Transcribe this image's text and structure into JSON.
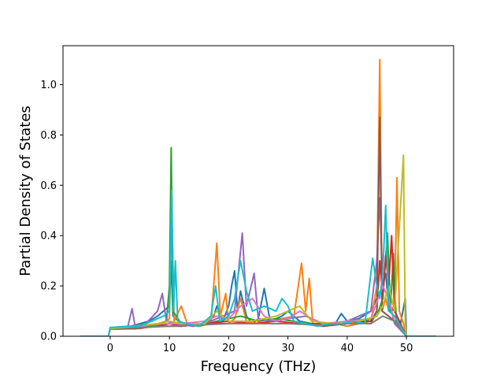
{
  "chart_data": {
    "type": "line",
    "title": "",
    "xlabel": "Frequency (THz)",
    "ylabel": "Partial Density of States",
    "xlim": [
      -7.96,
      57.96
    ],
    "ylim": [
      0.0,
      1.155
    ],
    "xticks": [
      0,
      10,
      20,
      30,
      40,
      50
    ],
    "yticks": [
      0.0,
      0.2,
      0.4,
      0.6,
      0.8,
      1.0
    ],
    "grid": false,
    "legend": "none",
    "series": [
      {
        "color": "#1f77b4",
        "points": [
          [
            -5,
            0
          ],
          [
            -0.3,
            0
          ],
          [
            0,
            0.03
          ],
          [
            2,
            0.032
          ],
          [
            3.5,
            0.04
          ],
          [
            5,
            0.05
          ],
          [
            6.5,
            0.06
          ],
          [
            8,
            0.08
          ],
          [
            9,
            0.1
          ],
          [
            10,
            0.12
          ],
          [
            10.3,
            0.3
          ],
          [
            10.6,
            0.08
          ],
          [
            12,
            0.05
          ],
          [
            14,
            0.04
          ],
          [
            16,
            0.05
          ],
          [
            17.5,
            0.08
          ],
          [
            18,
            0.12
          ],
          [
            19,
            0.06
          ],
          [
            20,
            0.12
          ],
          [
            20.5,
            0.2
          ],
          [
            21,
            0.26
          ],
          [
            21.5,
            0.1
          ],
          [
            22,
            0.18
          ],
          [
            23,
            0.08
          ],
          [
            24,
            0.05
          ],
          [
            25,
            0.07
          ],
          [
            26,
            0.19
          ],
          [
            27,
            0.06
          ],
          [
            29,
            0.08
          ],
          [
            30,
            0.1
          ],
          [
            32,
            0.06
          ],
          [
            34,
            0.05
          ],
          [
            36,
            0.04
          ],
          [
            38,
            0.05
          ],
          [
            39,
            0.09
          ],
          [
            40,
            0.06
          ],
          [
            42,
            0.07
          ],
          [
            44,
            0.1
          ],
          [
            45,
            0.15
          ],
          [
            46,
            0.2
          ],
          [
            46.5,
            0.25
          ],
          [
            47,
            0.12
          ],
          [
            48,
            0.1
          ],
          [
            49,
            0.05
          ],
          [
            49.8,
            0.15
          ],
          [
            50,
            0
          ],
          [
            55,
            0
          ]
        ]
      },
      {
        "color": "#ff7f0e",
        "points": [
          [
            -5,
            0
          ],
          [
            -0.3,
            0
          ],
          [
            0,
            0.028
          ],
          [
            3,
            0.03
          ],
          [
            5,
            0.03
          ],
          [
            7,
            0.04
          ],
          [
            9,
            0.05
          ],
          [
            10,
            0.07
          ],
          [
            10.4,
            0.5
          ],
          [
            10.8,
            0.06
          ],
          [
            12,
            0.12
          ],
          [
            13,
            0.05
          ],
          [
            15,
            0.04
          ],
          [
            17,
            0.05
          ],
          [
            18,
            0.37
          ],
          [
            18.6,
            0.08
          ],
          [
            19.5,
            0.17
          ],
          [
            20,
            0.05
          ],
          [
            21,
            0.07
          ],
          [
            22,
            0.15
          ],
          [
            23,
            0.06
          ],
          [
            25,
            0.05
          ],
          [
            27,
            0.06
          ],
          [
            29,
            0.07
          ],
          [
            31,
            0.08
          ],
          [
            32.3,
            0.29
          ],
          [
            33,
            0.1
          ],
          [
            33.6,
            0.23
          ],
          [
            34.2,
            0.05
          ],
          [
            36,
            0.04
          ],
          [
            38,
            0.05
          ],
          [
            40,
            0.04
          ],
          [
            42,
            0.05
          ],
          [
            44,
            0.06
          ],
          [
            45,
            0.2
          ],
          [
            45.5,
            1.1
          ],
          [
            45.9,
            0.1
          ],
          [
            46.5,
            0.15
          ],
          [
            47,
            0.1
          ],
          [
            48,
            0.12
          ],
          [
            48.4,
            0.63
          ],
          [
            48.8,
            0.1
          ],
          [
            49.5,
            0.05
          ],
          [
            50,
            0
          ],
          [
            55,
            0
          ]
        ]
      },
      {
        "color": "#2ca02c",
        "points": [
          [
            -5,
            0
          ],
          [
            -0.3,
            0
          ],
          [
            0,
            0.03
          ],
          [
            3,
            0.03
          ],
          [
            6,
            0.04
          ],
          [
            8,
            0.05
          ],
          [
            9.5,
            0.06
          ],
          [
            10,
            0.2
          ],
          [
            10.3,
            0.75
          ],
          [
            10.6,
            0.1
          ],
          [
            12,
            0.05
          ],
          [
            15,
            0.04
          ],
          [
            18,
            0.06
          ],
          [
            20,
            0.07
          ],
          [
            22,
            0.08
          ],
          [
            25,
            0.06
          ],
          [
            28,
            0.07
          ],
          [
            31,
            0.06
          ],
          [
            34,
            0.05
          ],
          [
            37,
            0.05
          ],
          [
            40,
            0.05
          ],
          [
            43,
            0.06
          ],
          [
            45,
            0.08
          ],
          [
            46,
            0.15
          ],
          [
            46.8,
            0.41
          ],
          [
            47.3,
            0.1
          ],
          [
            47.8,
            0.33
          ],
          [
            48.3,
            0.05
          ],
          [
            49,
            0.04
          ],
          [
            50,
            0
          ],
          [
            55,
            0
          ]
        ]
      },
      {
        "color": "#d62728",
        "points": [
          [
            -5,
            0
          ],
          [
            -0.3,
            0
          ],
          [
            0,
            0.03
          ],
          [
            4,
            0.03
          ],
          [
            8,
            0.04
          ],
          [
            10,
            0.05
          ],
          [
            12,
            0.04
          ],
          [
            16,
            0.05
          ],
          [
            20,
            0.06
          ],
          [
            24,
            0.05
          ],
          [
            28,
            0.06
          ],
          [
            32,
            0.05
          ],
          [
            36,
            0.05
          ],
          [
            40,
            0.05
          ],
          [
            44,
            0.06
          ],
          [
            45,
            0.1
          ],
          [
            45.5,
            0.3
          ],
          [
            46,
            0.15
          ],
          [
            46.5,
            0.32
          ],
          [
            47,
            0.2
          ],
          [
            47.5,
            0.4
          ],
          [
            48,
            0.1
          ],
          [
            49,
            0.05
          ],
          [
            50,
            0
          ],
          [
            55,
            0
          ]
        ]
      },
      {
        "color": "#9467bd",
        "points": [
          [
            -5,
            0
          ],
          [
            -0.3,
            0
          ],
          [
            0,
            0.03
          ],
          [
            3,
            0.04
          ],
          [
            3.7,
            0.11
          ],
          [
            4.2,
            0.04
          ],
          [
            6,
            0.05
          ],
          [
            8,
            0.1
          ],
          [
            8.8,
            0.17
          ],
          [
            9.5,
            0.06
          ],
          [
            11,
            0.05
          ],
          [
            14,
            0.04
          ],
          [
            17,
            0.06
          ],
          [
            19,
            0.08
          ],
          [
            21,
            0.1
          ],
          [
            22.3,
            0.41
          ],
          [
            23,
            0.12
          ],
          [
            24.3,
            0.25
          ],
          [
            25,
            0.07
          ],
          [
            27,
            0.06
          ],
          [
            30,
            0.07
          ],
          [
            33,
            0.08
          ],
          [
            36,
            0.05
          ],
          [
            40,
            0.06
          ],
          [
            42,
            0.08
          ],
          [
            44,
            0.1
          ],
          [
            45,
            0.3
          ],
          [
            45.5,
            0.55
          ],
          [
            46,
            0.2
          ],
          [
            47,
            0.15
          ],
          [
            48,
            0.05
          ],
          [
            50,
            0
          ],
          [
            55,
            0
          ]
        ]
      },
      {
        "color": "#8c564b",
        "points": [
          [
            -5,
            0
          ],
          [
            -0.3,
            0
          ],
          [
            0,
            0.028
          ],
          [
            4,
            0.03
          ],
          [
            8,
            0.04
          ],
          [
            12,
            0.04
          ],
          [
            16,
            0.05
          ],
          [
            20,
            0.05
          ],
          [
            24,
            0.05
          ],
          [
            28,
            0.05
          ],
          [
            32,
            0.05
          ],
          [
            36,
            0.04
          ],
          [
            40,
            0.05
          ],
          [
            44,
            0.05
          ],
          [
            45,
            0.1
          ],
          [
            45.5,
            0.87
          ],
          [
            45.9,
            0.1
          ],
          [
            47,
            0.08
          ],
          [
            48,
            0.06
          ],
          [
            49,
            0.04
          ],
          [
            50,
            0
          ],
          [
            55,
            0
          ]
        ]
      },
      {
        "color": "#e377c2",
        "points": [
          [
            -5,
            0
          ],
          [
            -0.3,
            0
          ],
          [
            0,
            0.03
          ],
          [
            4,
            0.035
          ],
          [
            8,
            0.05
          ],
          [
            12,
            0.05
          ],
          [
            16,
            0.06
          ],
          [
            18,
            0.08
          ],
          [
            20,
            0.07
          ],
          [
            22,
            0.12
          ],
          [
            24,
            0.15
          ],
          [
            26,
            0.08
          ],
          [
            28,
            0.06
          ],
          [
            30,
            0.07
          ],
          [
            32,
            0.1
          ],
          [
            34,
            0.07
          ],
          [
            36,
            0.05
          ],
          [
            40,
            0.06
          ],
          [
            44,
            0.07
          ],
          [
            46,
            0.2
          ],
          [
            47,
            0.15
          ],
          [
            48,
            0.06
          ],
          [
            50,
            0
          ],
          [
            55,
            0
          ]
        ]
      },
      {
        "color": "#7f7f7f",
        "points": [
          [
            -5,
            0
          ],
          [
            -0.3,
            0
          ],
          [
            0,
            0.03
          ],
          [
            5,
            0.035
          ],
          [
            10,
            0.04
          ],
          [
            15,
            0.045
          ],
          [
            20,
            0.05
          ],
          [
            25,
            0.05
          ],
          [
            30,
            0.05
          ],
          [
            35,
            0.045
          ],
          [
            40,
            0.05
          ],
          [
            44,
            0.05
          ],
          [
            46,
            0.08
          ],
          [
            48,
            0.06
          ],
          [
            50,
            0
          ],
          [
            55,
            0
          ]
        ]
      },
      {
        "color": "#bcbd22",
        "points": [
          [
            -5,
            0
          ],
          [
            -0.3,
            0
          ],
          [
            0,
            0.03
          ],
          [
            4,
            0.04
          ],
          [
            8,
            0.05
          ],
          [
            10,
            0.06
          ],
          [
            12,
            0.05
          ],
          [
            16,
            0.05
          ],
          [
            18,
            0.1
          ],
          [
            20,
            0.06
          ],
          [
            24,
            0.06
          ],
          [
            28,
            0.08
          ],
          [
            32,
            0.12
          ],
          [
            34,
            0.06
          ],
          [
            38,
            0.05
          ],
          [
            42,
            0.06
          ],
          [
            45,
            0.08
          ],
          [
            46,
            0.12
          ],
          [
            47,
            0.2
          ],
          [
            48,
            0.1
          ],
          [
            49.5,
            0.72
          ],
          [
            49.8,
            0.05
          ],
          [
            50,
            0
          ],
          [
            55,
            0
          ]
        ]
      },
      {
        "color": "#17becf",
        "points": [
          [
            -5,
            0
          ],
          [
            -0.3,
            0
          ],
          [
            0,
            0.035
          ],
          [
            3,
            0.04
          ],
          [
            5,
            0.04
          ],
          [
            7,
            0.06
          ],
          [
            9,
            0.08
          ],
          [
            10,
            0.1
          ],
          [
            10.4,
            0.58
          ],
          [
            10.7,
            0.1
          ],
          [
            11,
            0.3
          ],
          [
            11.4,
            0.06
          ],
          [
            13,
            0.05
          ],
          [
            15,
            0.04
          ],
          [
            17,
            0.08
          ],
          [
            17.8,
            0.2
          ],
          [
            18.5,
            0.06
          ],
          [
            20,
            0.08
          ],
          [
            21,
            0.15
          ],
          [
            22,
            0.3
          ],
          [
            23,
            0.18
          ],
          [
            24,
            0.1
          ],
          [
            26,
            0.12
          ],
          [
            28,
            0.1
          ],
          [
            29,
            0.15
          ],
          [
            30,
            0.12
          ],
          [
            31,
            0.06
          ],
          [
            33,
            0.05
          ],
          [
            35,
            0.04
          ],
          [
            37,
            0.05
          ],
          [
            39,
            0.05
          ],
          [
            41,
            0.06
          ],
          [
            43,
            0.05
          ],
          [
            44.3,
            0.31
          ],
          [
            45,
            0.2
          ],
          [
            45.5,
            0.15
          ],
          [
            46,
            0.25
          ],
          [
            46.5,
            0.52
          ],
          [
            47,
            0.1
          ],
          [
            48,
            0.08
          ],
          [
            49,
            0.04
          ],
          [
            50,
            0
          ],
          [
            55,
            0
          ]
        ]
      }
    ]
  }
}
